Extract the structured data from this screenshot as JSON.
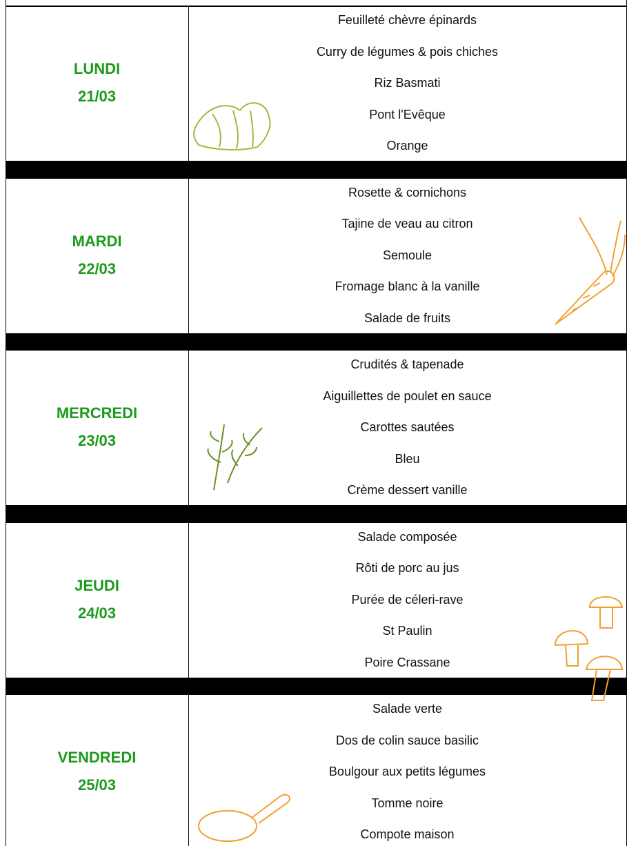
{
  "days": [
    {
      "day": "LUNDI",
      "date": "21/03",
      "items": [
        "Feuilleté chèvre épinards",
        "Curry de légumes & pois chiches",
        "Riz Basmati",
        "Pont l'Evêque",
        "Orange"
      ]
    },
    {
      "day": "MARDI",
      "date": "22/03",
      "items": [
        "Rosette & cornichons",
        "Tajine de veau au citron",
        "Semoule",
        "Fromage blanc à la vanille",
        "Salade de fruits"
      ]
    },
    {
      "day": "MERCREDI",
      "date": "23/03",
      "items": [
        "Crudités & tapenade",
        "Aiguillettes de poulet en sauce",
        "Carottes sautées",
        "Bleu",
        "Crème dessert vanille"
      ]
    },
    {
      "day": "JEUDI",
      "date": "24/03",
      "items": [
        "Salade composée",
        "Rôti de porc au jus",
        "Purée de céleri-rave",
        "St Paulin",
        "Poire Crassane"
      ]
    },
    {
      "day": "VENDREDI",
      "date": "25/03",
      "items": [
        "Salade verte",
        "Dos de colin sauce basilic",
        "Boulgour aux petits légumes",
        "Tomme noire",
        "Compote maison"
      ]
    }
  ]
}
